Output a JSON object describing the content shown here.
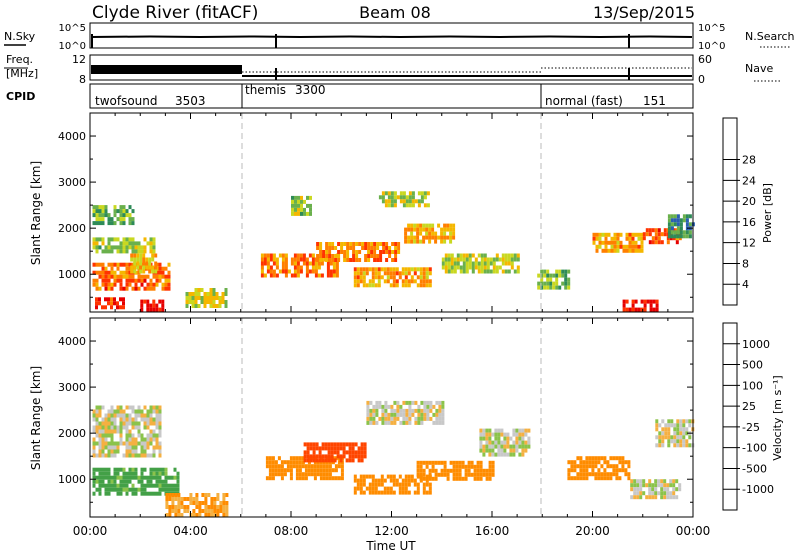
{
  "header": {
    "station": "Clyde River (fitACF)",
    "beam": "Beam 08",
    "date": "13/Sep/2015"
  },
  "strips": {
    "nsky": {
      "label": "N.Sky",
      "ticks": [
        "10^5",
        "10^0"
      ],
      "right_ticks": [
        "10^5",
        "10^0"
      ],
      "right_label": "N.Search"
    },
    "freq": {
      "label_top": "Freq.",
      "label_bottom": "[MHz]",
      "ticks": [
        "12",
        "8"
      ],
      "right_ticks": [
        "60",
        "0"
      ],
      "right_label": "Nave"
    },
    "cpid": {
      "label": "CPID",
      "segments": [
        {
          "name": "twofsound",
          "id": "3503",
          "start_hour": 0
        },
        {
          "name": "themis",
          "id": "3300",
          "start_hour": 6
        },
        {
          "name": "normal (fast)",
          "id": "151",
          "start_hour": 18
        }
      ]
    }
  },
  "chart_data": [
    {
      "type": "heatmap",
      "title": "",
      "xlabel": "Time UT",
      "ylabel": "Slant Range [km]",
      "xlim": [
        0,
        24
      ],
      "ylim": [
        180,
        4500
      ],
      "x_ticks": [
        "00:00",
        "04:00",
        "08:00",
        "12:00",
        "16:00",
        "20:00",
        "00:00"
      ],
      "y_ticks": [
        "1000",
        "2000",
        "3000",
        "4000"
      ],
      "colorbar": {
        "label": "Power [dB]",
        "ticks": [
          "4",
          "8",
          "12",
          "16",
          "20",
          "24",
          "28"
        ],
        "colors": [
          "#2222ff",
          "#2a5fb0",
          "#2e8b57",
          "#6ab04c",
          "#c9d821",
          "#f5b700",
          "#ff7f00",
          "#ff3300",
          "#e60000"
        ]
      },
      "vertical_markers_hour": [
        6,
        18
      ],
      "blobs": [
        {
          "t0": 0.1,
          "t1": 3.2,
          "r0": 700,
          "r1": 1250,
          "v": 23
        },
        {
          "t0": 0.1,
          "t1": 2.5,
          "r0": 1500,
          "r1": 1800,
          "v": 14
        },
        {
          "t0": 0.1,
          "t1": 1.7,
          "r0": 2100,
          "r1": 2500,
          "v": 12
        },
        {
          "t0": 0.2,
          "t1": 1.3,
          "r0": 250,
          "r1": 500,
          "v": 27
        },
        {
          "t0": 2.0,
          "t1": 2.9,
          "r0": 250,
          "r1": 450,
          "v": 28
        },
        {
          "t0": 1.6,
          "t1": 2.6,
          "r0": 1100,
          "r1": 1450,
          "v": 18
        },
        {
          "t0": 3.8,
          "t1": 5.4,
          "r0": 350,
          "r1": 700,
          "v": 16
        },
        {
          "t0": 6.8,
          "t1": 9.8,
          "r0": 1000,
          "r1": 1450,
          "v": 22
        },
        {
          "t0": 8.0,
          "t1": 8.8,
          "r0": 2300,
          "r1": 2700,
          "v": 14
        },
        {
          "t0": 9.0,
          "t1": 12.3,
          "r0": 1350,
          "r1": 1700,
          "v": 22
        },
        {
          "t0": 10.5,
          "t1": 13.5,
          "r0": 800,
          "r1": 1150,
          "v": 20
        },
        {
          "t0": 11.5,
          "t1": 13.5,
          "r0": 2500,
          "r1": 2800,
          "v": 15
        },
        {
          "t0": 12.5,
          "t1": 14.5,
          "r0": 1700,
          "r1": 2100,
          "v": 19
        },
        {
          "t0": 14.0,
          "t1": 17.0,
          "r0": 1100,
          "r1": 1450,
          "v": 15
        },
        {
          "t0": 17.8,
          "t1": 19.0,
          "r0": 700,
          "r1": 1100,
          "v": 13
        },
        {
          "t0": 20.0,
          "t1": 22.0,
          "r0": 1500,
          "r1": 1900,
          "v": 20
        },
        {
          "t0": 21.2,
          "t1": 22.6,
          "r0": 250,
          "r1": 450,
          "v": 28
        },
        {
          "t0": 22.0,
          "t1": 23.5,
          "r0": 1700,
          "r1": 2000,
          "v": 24
        },
        {
          "t0": 23.0,
          "t1": 24.0,
          "r0": 1800,
          "r1": 2300,
          "v": 9
        }
      ]
    },
    {
      "type": "heatmap",
      "title": "",
      "xlabel": "Time UT",
      "ylabel": "Slant Range [km]",
      "xlim": [
        0,
        24
      ],
      "ylim": [
        180,
        4500
      ],
      "x_ticks": [
        "00:00",
        "04:00",
        "08:00",
        "12:00",
        "16:00",
        "20:00",
        "00:00"
      ],
      "y_ticks": [
        "1000",
        "2000",
        "3000",
        "4000"
      ],
      "colorbar": {
        "label": "Velocity [m s⁻¹]",
        "ticks": [
          "1000",
          "500",
          "100",
          "25",
          "-25",
          "-100",
          "-500",
          "-1000"
        ],
        "colors": [
          "#1f3fbf",
          "#2e7d32",
          "#43a047",
          "#8bc34a",
          "#c8c8c8",
          "#f5b041",
          "#ff8c00",
          "#ff4500",
          "#e60000"
        ]
      },
      "vertical_markers_hour": [
        6,
        18
      ],
      "blobs": [
        {
          "t0": 0.1,
          "t1": 3.5,
          "r0": 700,
          "r1": 1250,
          "v": 150
        },
        {
          "t0": 0.1,
          "t1": 2.8,
          "r0": 1500,
          "r1": 2600,
          "v": 0
        },
        {
          "t0": 3.0,
          "t1": 5.5,
          "r0": 250,
          "r1": 700,
          "v": -100
        },
        {
          "t0": 7.0,
          "t1": 10.0,
          "r0": 1000,
          "r1": 1500,
          "v": -300
        },
        {
          "t0": 8.5,
          "t1": 11.0,
          "r0": 1400,
          "r1": 1800,
          "v": -600
        },
        {
          "t0": 10.5,
          "t1": 13.5,
          "r0": 700,
          "r1": 1100,
          "v": -300
        },
        {
          "t0": 11.0,
          "t1": 14.0,
          "r0": 2200,
          "r1": 2700,
          "v": 0
        },
        {
          "t0": 13.0,
          "t1": 16.0,
          "r0": 1000,
          "r1": 1400,
          "v": -250
        },
        {
          "t0": 15.5,
          "t1": 17.5,
          "r0": 1500,
          "r1": 2100,
          "v": 0
        },
        {
          "t0": 19.0,
          "t1": 21.5,
          "r0": 1000,
          "r1": 1500,
          "v": -250
        },
        {
          "t0": 21.5,
          "t1": 23.5,
          "r0": 600,
          "r1": 1000,
          "v": 0
        },
        {
          "t0": 22.5,
          "t1": 24.0,
          "r0": 1700,
          "r1": 2300,
          "v": 0
        }
      ]
    }
  ]
}
